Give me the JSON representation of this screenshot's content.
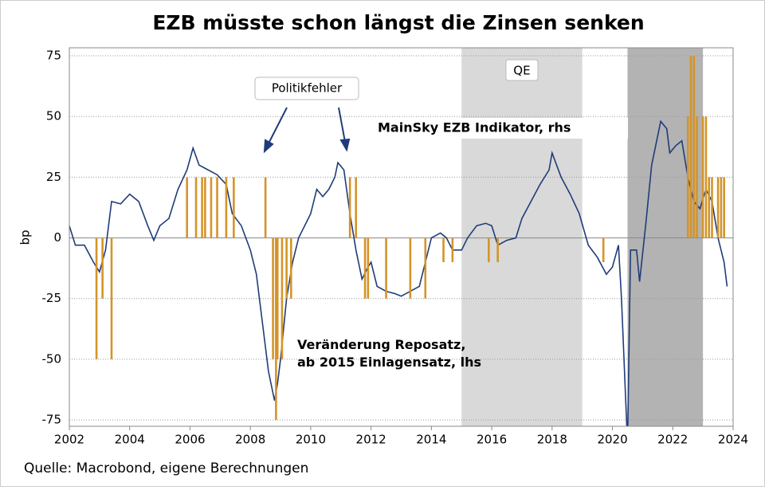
{
  "chart_data": {
    "type": "line",
    "title": "EZB müsste schon längst die Zinsen senken",
    "y_label": "bp",
    "source": "Quelle: Macrobond, eigene Berechnungen",
    "xlim": [
      2002,
      2024
    ],
    "ylim": [
      -77.6,
      78.3
    ],
    "xticks": [
      2002,
      2004,
      2006,
      2008,
      2010,
      2012,
      2014,
      2016,
      2018,
      2020,
      2022,
      2024
    ],
    "yticks": [
      -75,
      -50,
      -25,
      0,
      25,
      50,
      75
    ],
    "grid": true,
    "shaded_periods": [
      {
        "start": 2015,
        "end": 2019,
        "label": "QE",
        "color": "#d9d9d9"
      },
      {
        "start": 2020.5,
        "end": 2023,
        "color": "#b3b3b3"
      }
    ],
    "annotations": [
      "Politikfehler"
    ],
    "series": [
      {
        "name": "MainSky EZB Indikator, rhs",
        "color": "#203c78",
        "kind": "line",
        "x": [
          2002.0,
          2002.2,
          2002.5,
          2002.8,
          2003.0,
          2003.2,
          2003.4,
          2003.7,
          2004.0,
          2004.3,
          2004.6,
          2004.8,
          2005.0,
          2005.3,
          2005.6,
          2005.9,
          2006.1,
          2006.3,
          2006.6,
          2006.9,
          2007.2,
          2007.4,
          2007.7,
          2008.0,
          2008.2,
          2008.4,
          2008.6,
          2008.8,
          2008.9,
          2009.0,
          2009.2,
          2009.4,
          2009.6,
          2009.8,
          2010.0,
          2010.2,
          2010.4,
          2010.6,
          2010.8,
          2010.9,
          2011.1,
          2011.3,
          2011.5,
          2011.7,
          2011.9,
          2012.0,
          2012.2,
          2012.5,
          2012.8,
          2013.0,
          2013.3,
          2013.6,
          2013.8,
          2014.0,
          2014.3,
          2014.5,
          2014.7,
          2015.0,
          2015.2,
          2015.5,
          2015.8,
          2016.0,
          2016.2,
          2016.5,
          2016.8,
          2017.0,
          2017.3,
          2017.6,
          2017.9,
          2018.0,
          2018.3,
          2018.6,
          2018.9,
          2019.2,
          2019.5,
          2019.8,
          2020.0,
          2020.2,
          2020.3,
          2020.5,
          2020.6,
          2020.8,
          2020.9,
          2021.1,
          2021.3,
          2021.6,
          2021.8,
          2021.9,
          2022.1,
          2022.3,
          2022.5,
          2022.7,
          2022.9,
          2023.1,
          2023.3,
          2023.5,
          2023.7,
          2023.8
        ],
        "values": [
          5,
          -3,
          -3,
          -10,
          -14,
          -5,
          15,
          14,
          18,
          15,
          5,
          -1,
          5,
          8,
          20,
          28,
          37,
          30,
          28,
          26,
          22,
          10,
          5,
          -5,
          -15,
          -35,
          -55,
          -67,
          -60,
          -50,
          -25,
          -10,
          0,
          5,
          10,
          20,
          17,
          20,
          25,
          31,
          28,
          10,
          -5,
          -17,
          -12,
          -10,
          -20,
          -22,
          -23,
          -24,
          -22,
          -20,
          -10,
          0,
          2,
          0,
          -5,
          -5,
          0,
          5,
          6,
          5,
          -3,
          -1,
          0,
          8,
          15,
          22,
          28,
          35,
          25,
          18,
          10,
          -3,
          -8,
          -15,
          -12,
          -3,
          -25,
          -85,
          -5,
          -5,
          -18,
          5,
          30,
          48,
          45,
          35,
          38,
          40,
          25,
          15,
          12,
          20,
          15,
          0,
          -10,
          -20
        ]
      },
      {
        "name": "Veränderung Reposatz, ab 2015 Einlagensatz, lhs",
        "color": "#d4942a",
        "kind": "bar",
        "x": [
          2002.9,
          2003.1,
          2003.4,
          2005.9,
          2006.2,
          2006.4,
          2006.5,
          2006.7,
          2006.9,
          2007.2,
          2007.45,
          2008.5,
          2008.75,
          2008.85,
          2008.9,
          2009.05,
          2009.2,
          2009.35,
          2011.3,
          2011.5,
          2011.8,
          2011.9,
          2012.5,
          2013.3,
          2013.8,
          2014.4,
          2014.7,
          2015.9,
          2016.2,
          2019.7,
          2022.5,
          2022.6,
          2022.7,
          2022.8,
          2023.0,
          2023.1,
          2023.2,
          2023.3,
          2023.5,
          2023.6,
          2023.7
        ],
        "values": [
          -50,
          -25,
          -50,
          25,
          25,
          25,
          25,
          25,
          25,
          25,
          25,
          25,
          -50,
          -75,
          -50,
          -50,
          -25,
          -25,
          25,
          25,
          -25,
          -25,
          -25,
          -25,
          -25,
          -10,
          -10,
          -10,
          -10,
          -10,
          50,
          75,
          75,
          50,
          50,
          50,
          25,
          25,
          25,
          25,
          25
        ]
      }
    ]
  }
}
